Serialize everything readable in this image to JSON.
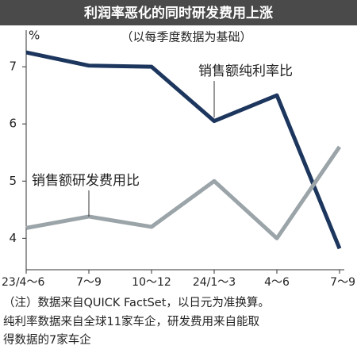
{
  "chart_data": {
    "type": "line",
    "title": "利润率恶化的同时研发费用上涨",
    "subtitle": "（以每季度数据为基础）",
    "y_unit": "%",
    "categories": [
      "23/4～6",
      "7～9",
      "10～12",
      "24/1～3",
      "4～6",
      "7～9"
    ],
    "series": [
      {
        "name": "销售额纯利率比",
        "color": "#1c365e",
        "values": [
          7.25,
          7.02,
          7.0,
          6.05,
          6.5,
          3.82
        ]
      },
      {
        "name": "销售额研发费用比",
        "color": "#9ba4a9",
        "values": [
          4.18,
          4.38,
          4.2,
          5.0,
          4.0,
          5.6
        ]
      }
    ],
    "ylim": [
      3.45,
      7.64
    ],
    "yticks": [
      4,
      5,
      6,
      7
    ],
    "notes": [
      "（注）数据来自QUICK FactSet，以日元为准换算。",
      "纯利率数据来自全球11家车企，研发费用来自能取",
      "得数据的7家车企"
    ]
  }
}
